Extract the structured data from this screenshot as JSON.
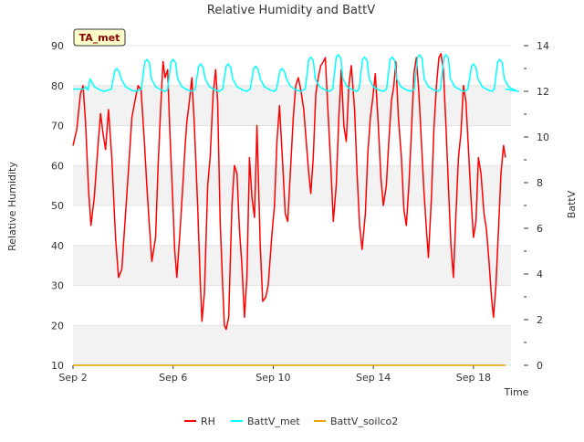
{
  "chart_data": {
    "type": "line",
    "title": "Relative Humidity and BattV",
    "xlabel": "Time",
    "ylabel_left": "Relative Humidity",
    "ylabel_right": "BattV",
    "site_label": "TA_met",
    "x_unit": "days",
    "x_range_days": [
      2,
      19.5
    ],
    "x_ticks": [
      {
        "day": 2,
        "label": "Sep 2"
      },
      {
        "day": 6,
        "label": "Sep 6"
      },
      {
        "day": 10,
        "label": "Sep 10"
      },
      {
        "day": 14,
        "label": "Sep 14"
      },
      {
        "day": 18,
        "label": "Sep 18"
      }
    ],
    "ylim_left": [
      10,
      90
    ],
    "yticks_left": [
      10,
      20,
      30,
      40,
      50,
      60,
      70,
      80,
      90
    ],
    "ylim_right": [
      0,
      14
    ],
    "yticks_right": [
      0,
      2,
      4,
      6,
      8,
      10,
      12,
      14
    ],
    "legend_position": "bottom",
    "series": [
      {
        "name": "RH",
        "axis": "left",
        "color": "#ff0000",
        "points": [
          [
            2.0,
            65
          ],
          [
            2.15,
            69
          ],
          [
            2.3,
            78
          ],
          [
            2.4,
            80
          ],
          [
            2.5,
            71
          ],
          [
            2.62,
            54
          ],
          [
            2.72,
            45
          ],
          [
            2.85,
            52
          ],
          [
            3.0,
            65
          ],
          [
            3.1,
            73
          ],
          [
            3.2,
            68
          ],
          [
            3.3,
            64
          ],
          [
            3.42,
            74
          ],
          [
            3.55,
            62
          ],
          [
            3.7,
            42
          ],
          [
            3.82,
            32
          ],
          [
            3.95,
            34
          ],
          [
            4.1,
            48
          ],
          [
            4.25,
            62
          ],
          [
            4.35,
            72
          ],
          [
            4.5,
            77
          ],
          [
            4.6,
            80
          ],
          [
            4.72,
            79
          ],
          [
            4.85,
            66
          ],
          [
            4.95,
            55
          ],
          [
            5.05,
            45
          ],
          [
            5.15,
            36
          ],
          [
            5.3,
            42
          ],
          [
            5.4,
            60
          ],
          [
            5.5,
            74
          ],
          [
            5.6,
            86
          ],
          [
            5.68,
            82
          ],
          [
            5.78,
            84
          ],
          [
            5.88,
            67
          ],
          [
            5.98,
            52
          ],
          [
            6.06,
            39
          ],
          [
            6.15,
            32
          ],
          [
            6.28,
            44
          ],
          [
            6.38,
            54
          ],
          [
            6.48,
            65
          ],
          [
            6.55,
            71
          ],
          [
            6.65,
            76
          ],
          [
            6.75,
            82
          ],
          [
            6.85,
            70
          ],
          [
            6.98,
            50
          ],
          [
            7.08,
            32
          ],
          [
            7.15,
            21
          ],
          [
            7.25,
            28
          ],
          [
            7.38,
            55
          ],
          [
            7.48,
            62
          ],
          [
            7.6,
            78
          ],
          [
            7.7,
            84
          ],
          [
            7.78,
            76
          ],
          [
            7.88,
            46
          ],
          [
            7.98,
            30
          ],
          [
            8.05,
            20
          ],
          [
            8.12,
            19
          ],
          [
            8.22,
            22
          ],
          [
            8.35,
            50
          ],
          [
            8.45,
            60
          ],
          [
            8.55,
            58
          ],
          [
            8.65,
            44
          ],
          [
            8.75,
            35
          ],
          [
            8.85,
            22
          ],
          [
            8.95,
            32
          ],
          [
            9.05,
            62
          ],
          [
            9.15,
            52
          ],
          [
            9.25,
            47
          ],
          [
            9.35,
            70
          ],
          [
            9.48,
            40
          ],
          [
            9.58,
            26
          ],
          [
            9.7,
            27
          ],
          [
            9.8,
            30
          ],
          [
            9.95,
            43
          ],
          [
            10.05,
            50
          ],
          [
            10.15,
            66
          ],
          [
            10.25,
            75
          ],
          [
            10.38,
            60
          ],
          [
            10.48,
            48
          ],
          [
            10.58,
            46
          ],
          [
            10.7,
            60
          ],
          [
            10.8,
            72
          ],
          [
            10.9,
            80
          ],
          [
            11.0,
            82
          ],
          [
            11.1,
            79
          ],
          [
            11.22,
            74
          ],
          [
            11.32,
            66
          ],
          [
            11.42,
            58
          ],
          [
            11.5,
            53
          ],
          [
            11.6,
            62
          ],
          [
            11.7,
            78
          ],
          [
            11.8,
            82
          ],
          [
            11.9,
            85
          ],
          [
            12.0,
            86
          ],
          [
            12.08,
            87
          ],
          [
            12.2,
            72
          ],
          [
            12.3,
            60
          ],
          [
            12.4,
            46
          ],
          [
            12.52,
            55
          ],
          [
            12.62,
            72
          ],
          [
            12.72,
            84
          ],
          [
            12.82,
            70
          ],
          [
            12.92,
            66
          ],
          [
            13.02,
            80
          ],
          [
            13.12,
            85
          ],
          [
            13.25,
            74
          ],
          [
            13.35,
            58
          ],
          [
            13.45,
            45
          ],
          [
            13.55,
            39
          ],
          [
            13.68,
            48
          ],
          [
            13.78,
            63
          ],
          [
            13.88,
            72
          ],
          [
            13.98,
            77
          ],
          [
            14.08,
            83
          ],
          [
            14.2,
            70
          ],
          [
            14.3,
            57
          ],
          [
            14.4,
            50
          ],
          [
            14.52,
            55
          ],
          [
            14.62,
            66
          ],
          [
            14.72,
            76
          ],
          [
            14.82,
            80
          ],
          [
            14.9,
            86
          ],
          [
            15.0,
            72
          ],
          [
            15.12,
            62
          ],
          [
            15.22,
            49
          ],
          [
            15.32,
            45
          ],
          [
            15.42,
            55
          ],
          [
            15.52,
            68
          ],
          [
            15.62,
            83
          ],
          [
            15.72,
            87
          ],
          [
            15.82,
            78
          ],
          [
            15.92,
            66
          ],
          [
            16.02,
            54
          ],
          [
            16.12,
            44
          ],
          [
            16.2,
            37
          ],
          [
            16.32,
            52
          ],
          [
            16.42,
            69
          ],
          [
            16.52,
            80
          ],
          [
            16.62,
            87
          ],
          [
            16.7,
            88
          ],
          [
            16.8,
            84
          ],
          [
            16.9,
            70
          ],
          [
            17.0,
            55
          ],
          [
            17.1,
            40
          ],
          [
            17.2,
            32
          ],
          [
            17.3,
            48
          ],
          [
            17.4,
            62
          ],
          [
            17.5,
            68
          ],
          [
            17.6,
            80
          ],
          [
            17.7,
            76
          ],
          [
            17.8,
            64
          ],
          [
            17.9,
            52
          ],
          [
            18.0,
            42
          ],
          [
            18.1,
            46
          ],
          [
            18.2,
            62
          ],
          [
            18.3,
            58
          ],
          [
            18.42,
            48
          ],
          [
            18.52,
            44
          ],
          [
            18.62,
            36
          ],
          [
            18.72,
            27
          ],
          [
            18.8,
            22
          ],
          [
            18.9,
            30
          ],
          [
            19.0,
            44
          ],
          [
            19.1,
            58
          ],
          [
            19.2,
            65
          ],
          [
            19.28,
            62
          ]
        ]
      },
      {
        "name": "BattV_met",
        "axis": "right",
        "color": "#00ffff",
        "peaks": [
          2.5,
          3.75,
          4.95,
          6.0,
          7.1,
          8.2,
          9.3,
          10.35,
          11.5,
          12.6,
          13.65,
          14.75,
          15.85,
          16.9,
          18.0,
          19.05
        ],
        "peak_values": [
          12.2,
          13.0,
          13.4,
          13.4,
          13.2,
          13.2,
          13.1,
          13.0,
          13.5,
          13.6,
          13.5,
          13.5,
          13.6,
          13.6,
          13.2,
          13.4
        ],
        "base_value": 12.0,
        "end_day": 19.28
      },
      {
        "name": "BattV_soilco2",
        "axis": "right",
        "color": "#e6a000",
        "points": [
          [
            2.0,
            0
          ],
          [
            19.28,
            0
          ]
        ]
      }
    ]
  }
}
